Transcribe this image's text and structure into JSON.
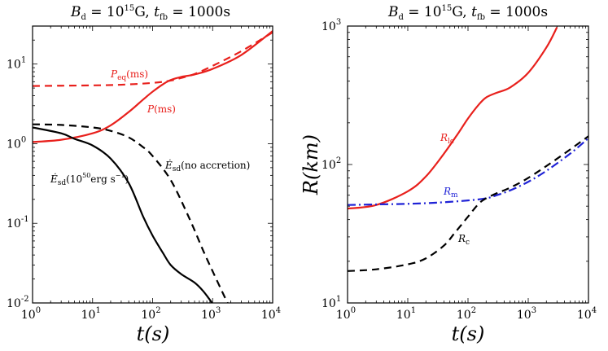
{
  "chart_data": [
    {
      "type": "line",
      "panel": "left",
      "title": "B_d = 10^15 G, t_fb = 1000s",
      "title_parts": {
        "b": "B",
        "b_sub": "d",
        "eq1": " = 10",
        "exp": "15",
        "unit": "G, ",
        "t": "t",
        "t_sub": "fb",
        "eq2": " = 1000s"
      },
      "xlabel": "t(s)",
      "ylabel": "",
      "xscale": "log",
      "yscale": "log",
      "xlim": [
        1,
        10000
      ],
      "ylim": [
        0.01,
        30
      ],
      "xticks": [
        {
          "base": "10",
          "exp": "0",
          "value": 1
        },
        {
          "base": "10",
          "exp": "1",
          "value": 10
        },
        {
          "base": "10",
          "exp": "2",
          "value": 100
        },
        {
          "base": "10",
          "exp": "3",
          "value": 1000
        },
        {
          "base": "10",
          "exp": "4",
          "value": 10000
        }
      ],
      "yticks": [
        {
          "base": "10",
          "exp": "1",
          "value": 10
        },
        {
          "base": "10",
          "exp": "0",
          "value": 1
        },
        {
          "base": "10",
          "exp": "-1",
          "value": 0.1
        },
        {
          "base": "10",
          "exp": "-2",
          "value": 0.01
        }
      ],
      "series": [
        {
          "name": "P_eq(ms)",
          "color": "#e8201c",
          "dash": "dashed",
          "x": [
            1,
            3,
            10,
            30,
            100,
            200,
            300,
            500,
            1000,
            3000,
            10000
          ],
          "y": [
            5.3,
            5.35,
            5.4,
            5.5,
            5.8,
            6.2,
            6.7,
            7.5,
            9.5,
            14.5,
            25
          ]
        },
        {
          "name": "P(ms)",
          "color": "#e8201c",
          "dash": "solid",
          "x": [
            1,
            3,
            10,
            20,
            40,
            70,
            100,
            150,
            200,
            300,
            500,
            1000,
            3000,
            10000
          ],
          "y": [
            1.05,
            1.12,
            1.35,
            1.7,
            2.5,
            3.6,
            4.5,
            5.6,
            6.3,
            6.9,
            7.4,
            8.7,
            13,
            26
          ]
        },
        {
          "name": "Edot_sd(no accretion)",
          "color": "#000000",
          "dash": "dashed",
          "x": [
            1,
            3,
            10,
            20,
            40,
            70,
            100,
            200,
            400,
            700,
            1000,
            1500,
            1800
          ],
          "y": [
            1.75,
            1.72,
            1.6,
            1.45,
            1.2,
            0.9,
            0.7,
            0.35,
            0.12,
            0.045,
            0.025,
            0.013,
            0.0098
          ]
        },
        {
          "name": "Edot_sd(10^50 erg s^-1)",
          "color": "#000000",
          "dash": "solid",
          "x": [
            1,
            3,
            5,
            10,
            20,
            40,
            70,
            100,
            150,
            200,
            300,
            500,
            700,
            1000
          ],
          "y": [
            1.6,
            1.35,
            1.15,
            0.95,
            0.65,
            0.32,
            0.12,
            0.07,
            0.042,
            0.03,
            0.023,
            0.018,
            0.014,
            0.0098
          ]
        }
      ],
      "annotations": [
        {
          "text": "P_eq(ms)",
          "color": "#e8201c",
          "at_x": 30,
          "at_y": 6.6
        },
        {
          "text": "P(ms)",
          "color": "#e8201c",
          "at_x": 80,
          "at_y": 2.9
        },
        {
          "text": "Edot_sd(no accretion)",
          "color": "#000000",
          "at_x": 140,
          "at_y": 0.62
        },
        {
          "text": "Edot_sd(10^50 erg s^-1)",
          "color": "#000000",
          "at_x": 1.6,
          "at_y": 0.26
        }
      ],
      "labels": {
        "peq": {
          "p": "P",
          "sub": "eq",
          "rest": "(ms)"
        },
        "p": {
          "p": "P",
          "rest": "(ms)"
        },
        "noacc": {
          "e": "Ė",
          "sub": "sd",
          "rest": "(no accretion)"
        },
        "edot": {
          "e": "Ė",
          "sub": "sd",
          "base": "(10",
          "exp": "50",
          "mid": "erg s",
          "exp2": "−1",
          "end": ")"
        }
      }
    },
    {
      "type": "line",
      "panel": "right",
      "title": "B_d = 10^15 G, t_fb = 1000s",
      "title_parts": {
        "b": "B",
        "b_sub": "d",
        "eq1": " = 10",
        "exp": "15",
        "unit": "G, ",
        "t": "t",
        "t_sub": "fb",
        "eq2": " = 1000s"
      },
      "xlabel": "t(s)",
      "ylabel": "R(km)",
      "xscale": "log",
      "yscale": "log",
      "xlim": [
        1,
        10000
      ],
      "ylim": [
        10,
        1000
      ],
      "xticks": [
        {
          "base": "10",
          "exp": "0",
          "value": 1
        },
        {
          "base": "10",
          "exp": "1",
          "value": 10
        },
        {
          "base": "10",
          "exp": "2",
          "value": 100
        },
        {
          "base": "10",
          "exp": "3",
          "value": 1000
        },
        {
          "base": "10",
          "exp": "4",
          "value": 10000
        }
      ],
      "yticks": [
        {
          "base": "10",
          "exp": "3",
          "value": 1000
        },
        {
          "base": "10",
          "exp": "2",
          "value": 100
        },
        {
          "base": "10",
          "exp": "1",
          "value": 10
        }
      ],
      "series": [
        {
          "name": "R_lc",
          "color": "#e8201c",
          "dash": "solid",
          "x": [
            1,
            3,
            10,
            20,
            40,
            70,
            100,
            150,
            200,
            300,
            500,
            1000,
            2000,
            3000
          ],
          "y": [
            48,
            51,
            64,
            82,
            120,
            170,
            215,
            270,
            305,
            330,
            360,
            460,
            700,
            980
          ]
        },
        {
          "name": "R_m",
          "color": "#1f22d6",
          "dash": "dashdot",
          "x": [
            1,
            3,
            10,
            30,
            100,
            200,
            300,
            500,
            1000,
            2000,
            5000,
            10000
          ],
          "y": [
            51,
            51.5,
            52,
            53,
            55,
            57,
            60,
            65,
            75,
            90,
            120,
            155
          ]
        },
        {
          "name": "R_c",
          "color": "#000000",
          "dash": "dashed",
          "x": [
            1,
            3,
            10,
            20,
            40,
            60,
            100,
            150,
            200,
            300,
            500,
            1000,
            3000,
            10000
          ],
          "y": [
            17,
            17.5,
            19,
            21,
            26,
            32,
            42,
            52,
            57,
            62,
            68,
            80,
            110,
            160
          ]
        }
      ],
      "annotations": [
        {
          "text": "R_lc",
          "color": "#e8201c",
          "at_x": 25,
          "at_y": 170
        },
        {
          "text": "R_m",
          "color": "#1f22d6",
          "at_x": 25,
          "at_y": 59
        },
        {
          "text": "R_c",
          "color": "#000000",
          "at_x": 60,
          "at_y": 26
        }
      ],
      "labels": {
        "rlc": {
          "r": "R",
          "sub": "lc"
        },
        "rm": {
          "r": "R",
          "sub": "m"
        },
        "rc": {
          "r": "R",
          "sub": "c"
        }
      }
    }
  ]
}
